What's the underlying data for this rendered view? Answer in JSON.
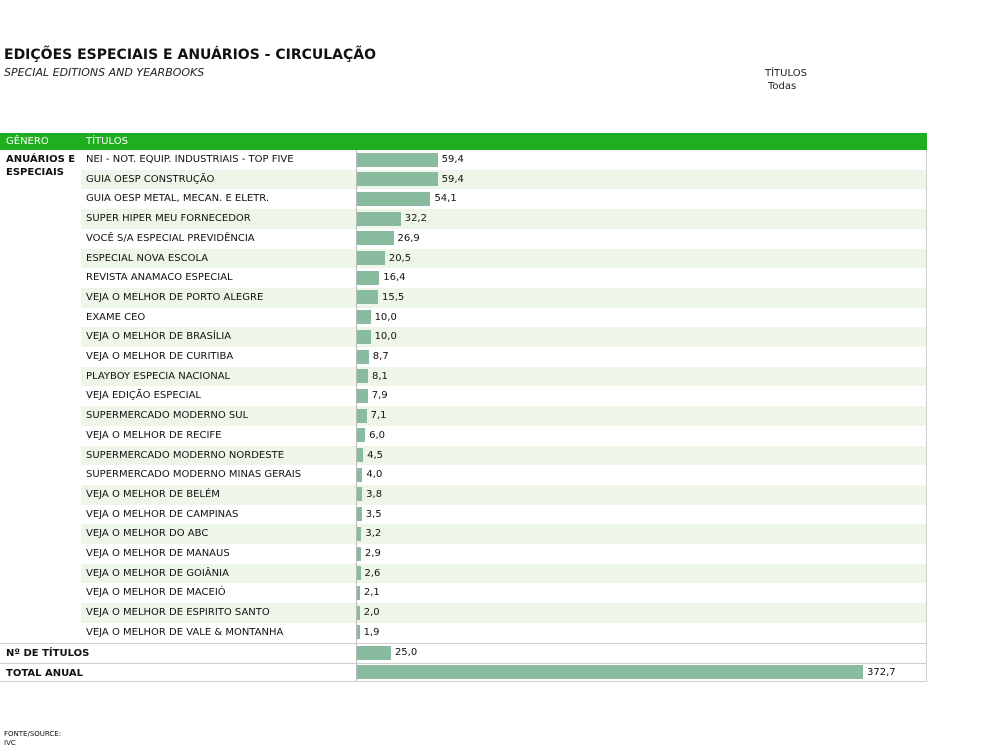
{
  "header": {
    "title": "EDIÇÕES ESPECIAIS E ANUÁRIOS - CIRCULAÇÃO",
    "subtitle": "SPECIAL EDITIONS AND YEARBOOKS",
    "filter_label": "TÍTULOS",
    "filter_value": "Todas"
  },
  "columns": {
    "genre": "GÊNERO",
    "titles": "TÍTULOS"
  },
  "genre_label": "ANUÁRIOS E ESPECIAIS",
  "colors": {
    "header_green": "#1fae1f",
    "bar": "#88bba0",
    "row_alt": "#eef6ea"
  },
  "chart_data": {
    "type": "bar",
    "orientation": "horizontal",
    "categories": [
      "NEI - NOT. EQUIP. INDUSTRIAIS - TOP FIVE",
      "GUIA OESP CONSTRUÇÃO",
      "GUIA OESP METAL, MECAN. E ELETR.",
      "SUPER HIPER MEU FORNECEDOR",
      "VOCÊ S/A ESPECIAL PREVIDÊNCIA",
      "ESPECIAL NOVA ESCOLA",
      "REVISTA ANAMACO ESPECIAL",
      "VEJA O MELHOR DE PORTO ALEGRE",
      "EXAME CEO",
      "VEJA O MELHOR DE BRASÍLIA",
      "VEJA O MELHOR DE CURITIBA",
      "PLAYBOY ESPECIA NACIONAL",
      "VEJA EDIÇÃO ESPECIAL",
      "SUPERMERCADO MODERNO SUL",
      "VEJA O MELHOR DE RECIFE",
      "SUPERMERCADO MODERNO NORDESTE",
      "SUPERMERCADO MODERNO MINAS GERAIS",
      "VEJA O MELHOR DE BELÉM",
      "VEJA O MELHOR DE CAMPINAS",
      "VEJA O MELHOR DO ABC",
      "VEJA O MELHOR DE MANAUS",
      "VEJA O MELHOR DE GOIÂNIA",
      "VEJA O MELHOR DE MACEIÓ",
      "VEJA O MELHOR DE ESPIRITO SANTO",
      "VEJA O MELHOR DE VALE & MONTANHA"
    ],
    "values": [
      59.4,
      59.4,
      54.1,
      32.2,
      26.9,
      20.5,
      16.4,
      15.5,
      10.0,
      10.0,
      8.7,
      8.1,
      7.9,
      7.1,
      6.0,
      4.5,
      4.0,
      3.8,
      3.5,
      3.2,
      2.9,
      2.6,
      2.1,
      2.0,
      1.9
    ],
    "value_labels": [
      "59,4",
      "59,4",
      "54,1",
      "32,2",
      "26,9",
      "20,5",
      "16,4",
      "15,5",
      "10,0",
      "10,0",
      "8,7",
      "8,1",
      "7,9",
      "7,1",
      "6,0",
      "4,5",
      "4,0",
      "3,8",
      "3,5",
      "3,2",
      "2,9",
      "2,6",
      "2,1",
      "2,0",
      "1,9"
    ],
    "summary": [
      {
        "label": "Nº DE TÍTULOS",
        "value": 25.0,
        "value_label": "25,0"
      },
      {
        "label": "TOTAL ANUAL",
        "value": 372.7,
        "value_label": "372,7"
      }
    ],
    "title": "EDIÇÕES ESPECIAIS E ANUÁRIOS - CIRCULAÇÃO",
    "xlabel": "",
    "ylabel": ""
  },
  "footer": {
    "source_label": "FONTE/SOURCE:",
    "source_value": "IVC"
  }
}
